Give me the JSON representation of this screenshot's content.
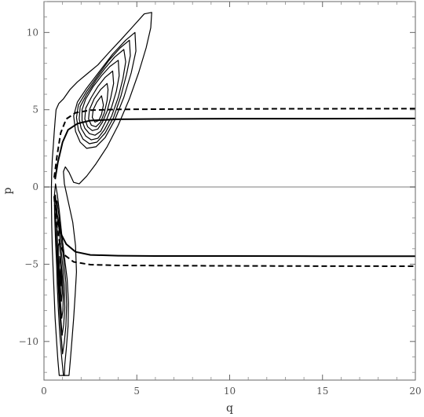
{
  "chart_data": {
    "type": "line",
    "title": "",
    "xlabel": "q",
    "ylabel": "p",
    "xlim": [
      0,
      20
    ],
    "ylim": [
      -12.5,
      12
    ],
    "grid": false,
    "legend": "none",
    "x_ticks": [
      {
        "value": 0,
        "label": "0"
      },
      {
        "value": 5,
        "label": "5"
      },
      {
        "value": 10,
        "label": "10"
      },
      {
        "value": 15,
        "label": "15"
      },
      {
        "value": 20,
        "label": "20"
      }
    ],
    "y_ticks": [
      {
        "value": -10,
        "label": "−10"
      },
      {
        "value": -5,
        "label": "−5"
      },
      {
        "value": 0,
        "label": "0"
      },
      {
        "value": 5,
        "label": "5"
      },
      {
        "value": 10,
        "label": "10"
      }
    ],
    "reference_line": {
      "y": 0,
      "color": "#bbbbbb"
    },
    "series": [
      {
        "style": "solid",
        "color": "#000000",
        "branches": [
          [
            [
              0.6,
              0.5
            ],
            [
              0.75,
              1.6
            ],
            [
              1.0,
              2.9
            ],
            [
              1.3,
              3.7
            ],
            [
              1.8,
              4.1
            ],
            [
              2.5,
              4.3
            ],
            [
              4,
              4.38
            ],
            [
              6,
              4.4
            ],
            [
              10,
              4.42
            ],
            [
              15,
              4.42
            ],
            [
              20,
              4.43
            ]
          ],
          [
            [
              0.6,
              -0.5
            ],
            [
              0.7,
              -1.8
            ],
            [
              0.9,
              -3.0
            ],
            [
              1.2,
              -3.7
            ],
            [
              1.7,
              -4.2
            ],
            [
              2.5,
              -4.4
            ],
            [
              4,
              -4.45
            ],
            [
              6,
              -4.47
            ],
            [
              10,
              -4.47
            ],
            [
              15,
              -4.48
            ],
            [
              20,
              -4.48
            ]
          ]
        ]
      },
      {
        "style": "dashed",
        "color": "#000000",
        "branches": [
          [
            [
              0.55,
              0.6
            ],
            [
              0.7,
              2.0
            ],
            [
              0.9,
              3.5
            ],
            [
              1.2,
              4.4
            ],
            [
              1.7,
              4.8
            ],
            [
              2.5,
              4.97
            ],
            [
              4,
              5.02
            ],
            [
              8,
              5.05
            ],
            [
              14,
              5.06
            ],
            [
              20,
              5.07
            ]
          ],
          [
            [
              0.55,
              -0.6
            ],
            [
              0.65,
              -2.2
            ],
            [
              0.85,
              -3.6
            ],
            [
              1.1,
              -4.4
            ],
            [
              1.6,
              -4.85
            ],
            [
              2.5,
              -5.03
            ],
            [
              4,
              -5.08
            ],
            [
              8,
              -5.1
            ],
            [
              14,
              -5.12
            ],
            [
              20,
              -5.13
            ]
          ]
        ]
      }
    ],
    "contours": {
      "style": "solid",
      "color": "#000000",
      "rings": [
        [
          [
            5.8,
            11.3
          ],
          [
            5.4,
            11.2
          ],
          [
            4.8,
            10.4
          ],
          [
            4.2,
            9.6
          ],
          [
            3.5,
            8.7
          ],
          [
            2.9,
            7.9
          ],
          [
            2.3,
            7.3
          ],
          [
            1.8,
            6.8
          ],
          [
            1.4,
            6.3
          ],
          [
            1.05,
            5.7
          ],
          [
            0.8,
            5.4
          ],
          [
            0.65,
            5.0
          ],
          [
            0.6,
            4.3
          ],
          [
            0.55,
            3.5
          ],
          [
            0.5,
            2.6
          ],
          [
            0.45,
            1.8
          ],
          [
            0.42,
            1.0
          ],
          [
            0.4,
            0
          ],
          [
            0.4,
            -1.0
          ],
          [
            0.42,
            -2.5
          ],
          [
            0.45,
            -4.0
          ],
          [
            0.5,
            -5.5
          ],
          [
            0.55,
            -7.0
          ],
          [
            0.6,
            -8.5
          ],
          [
            0.68,
            -10.0
          ],
          [
            0.75,
            -11.2
          ],
          [
            0.82,
            -12.2
          ],
          [
            1.35,
            -12.2
          ],
          [
            1.42,
            -11.2
          ],
          [
            1.5,
            -10.0
          ],
          [
            1.6,
            -8.5
          ],
          [
            1.68,
            -7.0
          ],
          [
            1.75,
            -5.5
          ],
          [
            1.7,
            -3.8
          ],
          [
            1.55,
            -2.3
          ],
          [
            1.3,
            -0.9
          ],
          [
            1.1,
            0.2
          ],
          [
            1.05,
            1.0
          ],
          [
            1.15,
            1.3
          ],
          [
            1.35,
            0.95
          ],
          [
            1.6,
            0.3
          ],
          [
            1.9,
            0.2
          ],
          [
            2.3,
            0.7
          ],
          [
            2.8,
            1.5
          ],
          [
            3.4,
            2.6
          ],
          [
            4.0,
            4.0
          ],
          [
            4.6,
            5.7
          ],
          [
            5.1,
            7.4
          ],
          [
            5.5,
            9.0
          ],
          [
            5.75,
            10.3
          ],
          [
            5.8,
            11.3
          ]
        ],
        [
          [
            4.9,
            10.0
          ],
          [
            4.4,
            9.5
          ],
          [
            3.7,
            8.6
          ],
          [
            3.0,
            7.5
          ],
          [
            2.3,
            6.4
          ],
          [
            1.8,
            5.5
          ],
          [
            1.6,
            4.6
          ],
          [
            1.7,
            3.6
          ],
          [
            1.95,
            2.9
          ],
          [
            2.3,
            2.5
          ],
          [
            2.8,
            2.6
          ],
          [
            3.3,
            3.2
          ],
          [
            3.8,
            4.3
          ],
          [
            4.3,
            5.8
          ],
          [
            4.7,
            7.4
          ],
          [
            4.95,
            8.8
          ],
          [
            4.9,
            10.0
          ]
        ],
        [
          [
            4.6,
            9.5
          ],
          [
            4.1,
            9.0
          ],
          [
            3.5,
            8.2
          ],
          [
            2.9,
            7.2
          ],
          [
            2.3,
            6.2
          ],
          [
            1.85,
            5.3
          ],
          [
            1.75,
            4.5
          ],
          [
            1.85,
            3.7
          ],
          [
            2.1,
            3.1
          ],
          [
            2.45,
            2.8
          ],
          [
            2.85,
            2.9
          ],
          [
            3.3,
            3.5
          ],
          [
            3.75,
            4.5
          ],
          [
            4.15,
            5.9
          ],
          [
            4.45,
            7.3
          ],
          [
            4.65,
            8.5
          ],
          [
            4.6,
            9.5
          ]
        ],
        [
          [
            4.3,
            8.9
          ],
          [
            3.8,
            8.4
          ],
          [
            3.3,
            7.7
          ],
          [
            2.8,
            6.9
          ],
          [
            2.3,
            6.0
          ],
          [
            1.95,
            5.2
          ],
          [
            1.9,
            4.4
          ],
          [
            2.0,
            3.8
          ],
          [
            2.25,
            3.3
          ],
          [
            2.55,
            3.05
          ],
          [
            2.9,
            3.15
          ],
          [
            3.25,
            3.7
          ],
          [
            3.65,
            4.6
          ],
          [
            4.0,
            5.8
          ],
          [
            4.25,
            7.0
          ],
          [
            4.4,
            8.1
          ],
          [
            4.3,
            8.9
          ]
        ],
        [
          [
            4.0,
            8.2
          ],
          [
            3.55,
            7.8
          ],
          [
            3.1,
            7.2
          ],
          [
            2.65,
            6.5
          ],
          [
            2.25,
            5.7
          ],
          [
            2.05,
            5.0
          ],
          [
            2.05,
            4.3
          ],
          [
            2.2,
            3.8
          ],
          [
            2.45,
            3.45
          ],
          [
            2.75,
            3.35
          ],
          [
            3.05,
            3.6
          ],
          [
            3.35,
            4.3
          ],
          [
            3.65,
            5.2
          ],
          [
            3.9,
            6.2
          ],
          [
            4.05,
            7.2
          ],
          [
            4.0,
            8.2
          ]
        ],
        [
          [
            3.7,
            7.5
          ],
          [
            3.3,
            7.1
          ],
          [
            2.9,
            6.5
          ],
          [
            2.55,
            5.8
          ],
          [
            2.25,
            5.1
          ],
          [
            2.2,
            4.4
          ],
          [
            2.35,
            3.9
          ],
          [
            2.6,
            3.65
          ],
          [
            2.9,
            3.75
          ],
          [
            3.15,
            4.2
          ],
          [
            3.4,
            4.9
          ],
          [
            3.6,
            5.8
          ],
          [
            3.75,
            6.7
          ],
          [
            3.7,
            7.5
          ]
        ],
        [
          [
            3.4,
            6.7
          ],
          [
            3.05,
            6.3
          ],
          [
            2.7,
            5.7
          ],
          [
            2.45,
            5.0
          ],
          [
            2.4,
            4.4
          ],
          [
            2.55,
            4.0
          ],
          [
            2.8,
            3.9
          ],
          [
            3.05,
            4.2
          ],
          [
            3.25,
            4.8
          ],
          [
            3.4,
            5.6
          ],
          [
            3.45,
            6.3
          ],
          [
            3.4,
            6.7
          ]
        ],
        [
          [
            3.1,
            5.9
          ],
          [
            2.85,
            5.5
          ],
          [
            2.65,
            5.0
          ],
          [
            2.6,
            4.5
          ],
          [
            2.75,
            4.2
          ],
          [
            2.95,
            4.3
          ],
          [
            3.1,
            4.7
          ],
          [
            3.2,
            5.3
          ],
          [
            3.1,
            5.9
          ]
        ],
        [
          [
            1.05,
            -12.2
          ],
          [
            0.95,
            -11.0
          ],
          [
            0.85,
            -9.5
          ],
          [
            0.78,
            -8.0
          ],
          [
            0.72,
            -6.5
          ],
          [
            0.68,
            -5.0
          ],
          [
            0.62,
            -3.5
          ],
          [
            0.58,
            -2.0
          ],
          [
            0.56,
            -0.6
          ],
          [
            0.62,
            0.2
          ],
          [
            0.72,
            -0.5
          ],
          [
            0.82,
            -1.5
          ],
          [
            0.95,
            -3.0
          ],
          [
            1.1,
            -4.5
          ],
          [
            1.25,
            -6.0
          ],
          [
            1.32,
            -7.5
          ],
          [
            1.3,
            -9.0
          ],
          [
            1.2,
            -10.5
          ],
          [
            1.12,
            -11.5
          ],
          [
            1.1,
            -12.2
          ]
        ],
        [
          [
            1.0,
            -10.8
          ],
          [
            0.92,
            -9.5
          ],
          [
            0.84,
            -8.0
          ],
          [
            0.78,
            -6.6
          ],
          [
            0.73,
            -5.2
          ],
          [
            0.68,
            -3.8
          ],
          [
            0.64,
            -2.4
          ],
          [
            0.63,
            -1.2
          ],
          [
            0.7,
            -0.9
          ],
          [
            0.8,
            -1.8
          ],
          [
            0.92,
            -3.2
          ],
          [
            1.06,
            -4.7
          ],
          [
            1.18,
            -6.2
          ],
          [
            1.22,
            -7.6
          ],
          [
            1.18,
            -9.0
          ],
          [
            1.1,
            -10.0
          ],
          [
            1.0,
            -10.8
          ]
        ],
        [
          [
            0.98,
            -9.6
          ],
          [
            0.9,
            -8.4
          ],
          [
            0.83,
            -7.0
          ],
          [
            0.78,
            -5.6
          ],
          [
            0.74,
            -4.2
          ],
          [
            0.71,
            -3.0
          ],
          [
            0.72,
            -2.2
          ],
          [
            0.8,
            -2.6
          ],
          [
            0.9,
            -3.8
          ],
          [
            1.02,
            -5.2
          ],
          [
            1.1,
            -6.6
          ],
          [
            1.12,
            -7.8
          ],
          [
            1.06,
            -8.9
          ],
          [
            0.98,
            -9.6
          ]
        ],
        [
          [
            0.96,
            -8.5
          ],
          [
            0.88,
            -7.3
          ],
          [
            0.82,
            -6.0
          ],
          [
            0.78,
            -4.8
          ],
          [
            0.77,
            -3.8
          ],
          [
            0.82,
            -3.6
          ],
          [
            0.9,
            -4.6
          ],
          [
            0.99,
            -5.8
          ],
          [
            1.04,
            -7.0
          ],
          [
            1.02,
            -8.0
          ],
          [
            0.96,
            -8.5
          ]
        ],
        [
          [
            0.94,
            -7.4
          ],
          [
            0.87,
            -6.3
          ],
          [
            0.83,
            -5.2
          ],
          [
            0.84,
            -4.5
          ],
          [
            0.9,
            -5.0
          ],
          [
            0.96,
            -6.0
          ],
          [
            0.98,
            -6.9
          ],
          [
            0.94,
            -7.4
          ]
        ],
        [
          [
            0.92,
            -6.4
          ],
          [
            0.88,
            -5.6
          ],
          [
            0.9,
            -5.3
          ],
          [
            0.93,
            -5.8
          ],
          [
            0.92,
            -6.4
          ]
        ]
      ]
    }
  }
}
